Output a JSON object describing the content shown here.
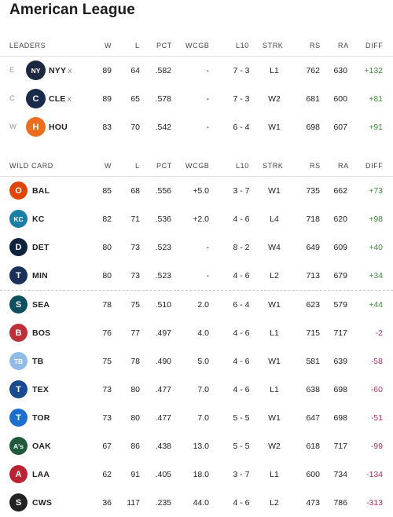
{
  "title": "American League",
  "leaders": {
    "header": {
      "label": "LEADERS",
      "w": "W",
      "l": "L",
      "pct": "PCT",
      "wcgb": "WCGB",
      "l10": "L10",
      "strk": "STRK",
      "rs": "RS",
      "ra": "RA",
      "diff": "DIFF"
    },
    "rows": [
      {
        "div": "E",
        "team": "NYY",
        "x": "x",
        "logo_text": "NY",
        "logo_color": "#1c2841",
        "w": "89",
        "l": "64",
        "pct": ".582",
        "wcgb": "-",
        "l10": "7 - 3",
        "strk": "L1",
        "rs": "762",
        "ra": "630",
        "diff": "+132",
        "diff_sign": "pos"
      },
      {
        "div": "C",
        "team": "CLE",
        "x": "x",
        "logo_text": "C",
        "logo_color": "#1a2a4a",
        "w": "89",
        "l": "65",
        "pct": ".578",
        "wcgb": "-",
        "l10": "7 - 3",
        "strk": "W2",
        "rs": "681",
        "ra": "600",
        "diff": "+81",
        "diff_sign": "pos"
      },
      {
        "div": "W",
        "team": "HOU",
        "x": "",
        "logo_text": "H",
        "logo_color": "#eb6e1f",
        "w": "83",
        "l": "70",
        "pct": ".542",
        "wcgb": "-",
        "l10": "6 - 4",
        "strk": "W1",
        "rs": "698",
        "ra": "607",
        "diff": "+91",
        "diff_sign": "pos"
      }
    ]
  },
  "wildcard": {
    "header": {
      "label": "WILD CARD",
      "w": "W",
      "l": "L",
      "pct": "PCT",
      "wcgb": "WCGB",
      "l10": "L10",
      "strk": "STRK",
      "rs": "RS",
      "ra": "RA",
      "diff": "DIFF"
    },
    "rows": [
      {
        "team": "BAL",
        "logo_text": "O",
        "logo_color": "#df4601",
        "w": "85",
        "l": "68",
        "pct": ".556",
        "wcgb": "+5.0",
        "l10": "3 - 7",
        "strk": "W1",
        "rs": "735",
        "ra": "662",
        "diff": "+73",
        "diff_sign": "pos"
      },
      {
        "team": "KC",
        "logo_text": "KC",
        "logo_color": "#1a7fa6",
        "w": "82",
        "l": "71",
        "pct": ".536",
        "wcgb": "+2.0",
        "l10": "4 - 6",
        "strk": "L4",
        "rs": "718",
        "ra": "620",
        "diff": "+98",
        "diff_sign": "pos"
      },
      {
        "team": "DET",
        "logo_text": "D",
        "logo_color": "#0c2340",
        "w": "80",
        "l": "73",
        "pct": ".523",
        "wcgb": "-",
        "l10": "8 - 2",
        "strk": "W4",
        "rs": "649",
        "ra": "609",
        "diff": "+40",
        "diff_sign": "pos"
      },
      {
        "team": "MIN",
        "logo_text": "T",
        "logo_color": "#1b2f5b",
        "w": "80",
        "l": "73",
        "pct": ".523",
        "wcgb": "-",
        "l10": "4 - 6",
        "strk": "L2",
        "rs": "713",
        "ra": "679",
        "diff": "+34",
        "diff_sign": "pos"
      },
      {
        "team": "SEA",
        "logo_text": "S",
        "logo_color": "#0c4f5e",
        "w": "78",
        "l": "75",
        "pct": ".510",
        "wcgb": "2.0",
        "l10": "6 - 4",
        "strk": "W1",
        "rs": "623",
        "ra": "579",
        "diff": "+44",
        "diff_sign": "pos"
      },
      {
        "team": "BOS",
        "logo_text": "B",
        "logo_color": "#bd3039",
        "w": "76",
        "l": "77",
        "pct": ".497",
        "wcgb": "4.0",
        "l10": "4 - 6",
        "strk": "L1",
        "rs": "715",
        "ra": "717",
        "diff": "-2",
        "diff_sign": "neg"
      },
      {
        "team": "TB",
        "logo_text": "TB",
        "logo_color": "#8fbce6",
        "w": "75",
        "l": "78",
        "pct": ".490",
        "wcgb": "5.0",
        "l10": "4 - 6",
        "strk": "W1",
        "rs": "581",
        "ra": "639",
        "diff": "-58",
        "diff_sign": "neg"
      },
      {
        "team": "TEX",
        "logo_text": "T",
        "logo_color": "#1a4b8f",
        "w": "73",
        "l": "80",
        "pct": ".477",
        "wcgb": "7.0",
        "l10": "4 - 6",
        "strk": "L1",
        "rs": "638",
        "ra": "698",
        "diff": "-60",
        "diff_sign": "neg"
      },
      {
        "team": "TOR",
        "logo_text": "T",
        "logo_color": "#1c6fd1",
        "w": "73",
        "l": "80",
        "pct": ".477",
        "wcgb": "7.0",
        "l10": "5 - 5",
        "strk": "W1",
        "rs": "647",
        "ra": "698",
        "diff": "-51",
        "diff_sign": "neg"
      },
      {
        "team": "OAK",
        "logo_text": "A's",
        "logo_color": "#1e5a3b",
        "w": "67",
        "l": "86",
        "pct": ".438",
        "wcgb": "13.0",
        "l10": "5 - 5",
        "strk": "W2",
        "rs": "618",
        "ra": "717",
        "diff": "-99",
        "diff_sign": "neg"
      },
      {
        "team": "LAA",
        "logo_text": "A",
        "logo_color": "#ba2336",
        "w": "62",
        "l": "91",
        "pct": ".405",
        "wcgb": "18.0",
        "l10": "3 - 7",
        "strk": "L1",
        "rs": "600",
        "ra": "734",
        "diff": "-134",
        "diff_sign": "neg"
      },
      {
        "team": "CWS",
        "logo_text": "S",
        "logo_color": "#222222",
        "w": "36",
        "l": "117",
        "pct": ".235",
        "wcgb": "44.0",
        "l10": "4 - 6",
        "strk": "L2",
        "rs": "473",
        "ra": "786",
        "diff": "-313",
        "diff_sign": "neg"
      }
    ]
  }
}
